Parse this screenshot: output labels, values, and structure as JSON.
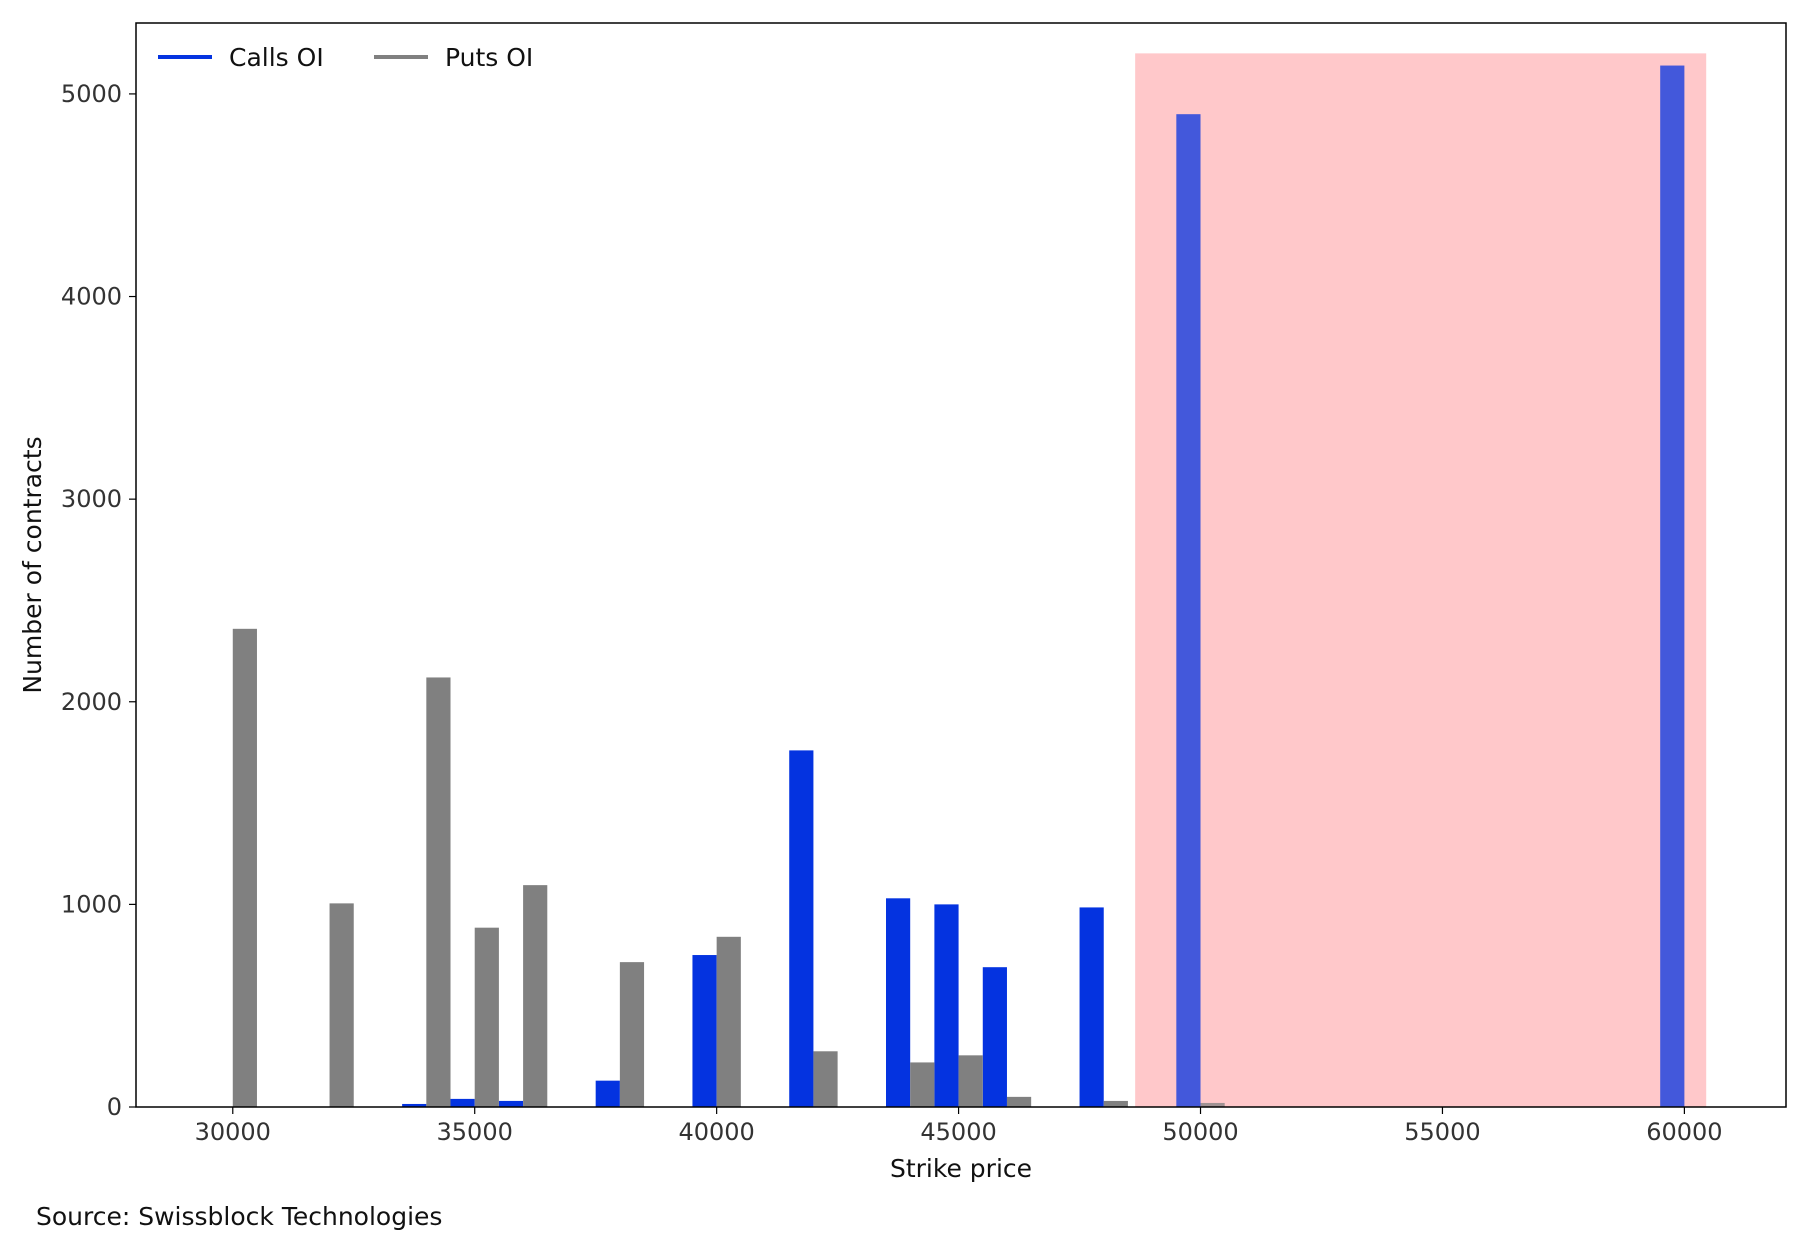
{
  "chart_data": {
    "type": "bar",
    "title": "",
    "xlabel": "Strike price",
    "ylabel": "Number of contracts",
    "xlim": [
      28000,
      62100
    ],
    "ylim": [
      0,
      5350
    ],
    "xticks": [
      30000,
      35000,
      40000,
      45000,
      50000,
      55000,
      60000
    ],
    "yticks": [
      0,
      1000,
      2000,
      3000,
      4000,
      5000
    ],
    "grid": false,
    "legend_position": "top-left",
    "bar_width": 500,
    "highlight_region": {
      "x_range": [
        48650,
        60450
      ],
      "y_range": [
        0,
        5200
      ],
      "color": "#ffc9ca"
    },
    "series": [
      {
        "name": "Calls OI",
        "color": "#0433e0",
        "offset": -250,
        "points": [
          {
            "x": 34000,
            "y": 15
          },
          {
            "x": 35000,
            "y": 40
          },
          {
            "x": 36000,
            "y": 30
          },
          {
            "x": 38000,
            "y": 130
          },
          {
            "x": 40000,
            "y": 750
          },
          {
            "x": 42000,
            "y": 1760
          },
          {
            "x": 44000,
            "y": 1030
          },
          {
            "x": 45000,
            "y": 1000
          },
          {
            "x": 46000,
            "y": 690
          },
          {
            "x": 48000,
            "y": 985
          },
          {
            "x": 50000,
            "y": 4900
          },
          {
            "x": 60000,
            "y": 5140
          }
        ]
      },
      {
        "name": "Puts OI",
        "color": "#808080",
        "offset": 250,
        "points": [
          {
            "x": 30000,
            "y": 2360
          },
          {
            "x": 32000,
            "y": 1005
          },
          {
            "x": 34000,
            "y": 2120
          },
          {
            "x": 35000,
            "y": 885
          },
          {
            "x": 36000,
            "y": 1095
          },
          {
            "x": 38000,
            "y": 715
          },
          {
            "x": 40000,
            "y": 840
          },
          {
            "x": 42000,
            "y": 275
          },
          {
            "x": 44000,
            "y": 220
          },
          {
            "x": 45000,
            "y": 255
          },
          {
            "x": 46000,
            "y": 50
          },
          {
            "x": 48000,
            "y": 30
          },
          {
            "x": 50000,
            "y": 20
          }
        ]
      }
    ]
  },
  "source_note": "Source: Swissblock Technologies"
}
